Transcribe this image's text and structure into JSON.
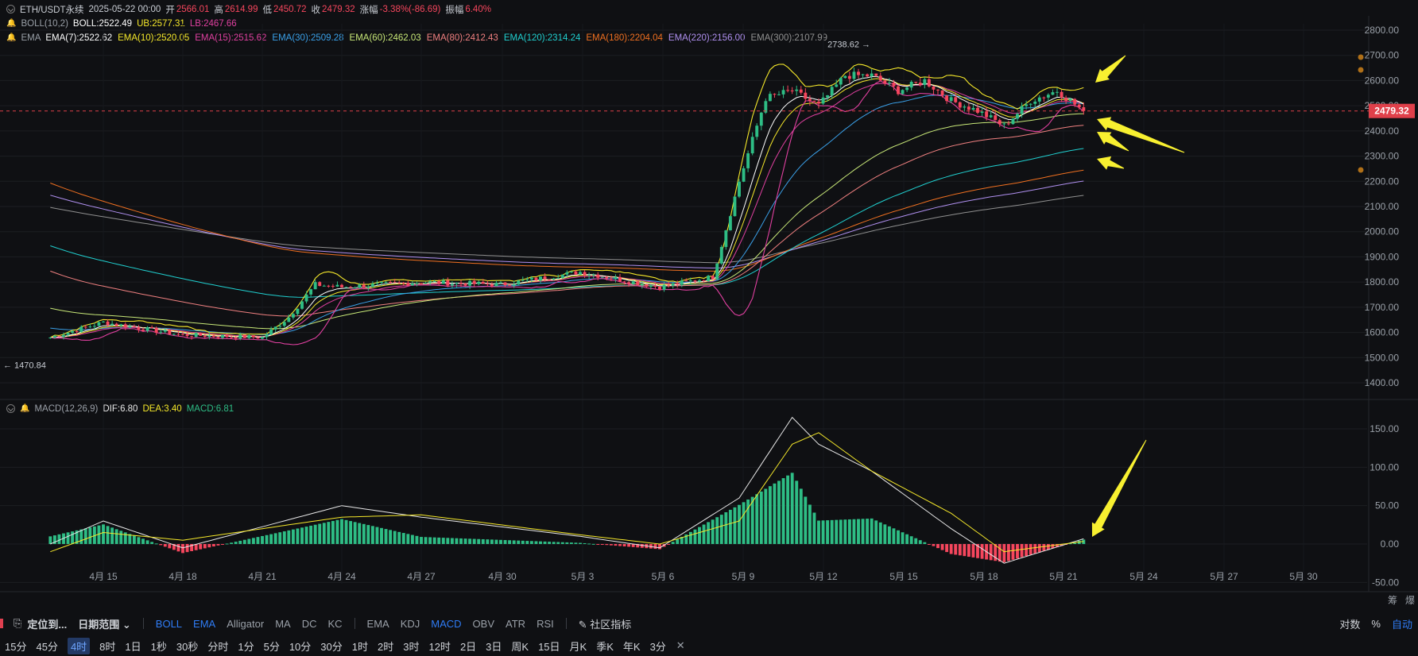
{
  "colors": {
    "up": "#2ebd85",
    "down": "#f6465d",
    "boll_mid": "#ffffff",
    "boll_up": "#f5e82a",
    "boll_low": "#e040a0",
    "ema7": "#ffffff",
    "ema10": "#f5e82a",
    "ema15": "#e040a0",
    "ema30": "#3aa0e8",
    "ema60": "#c8e878",
    "ema80": "#f08080",
    "ema120": "#20d0d0",
    "ema180": "#f07020",
    "ema220": "#b090f0",
    "ema300": "#909090",
    "dif": "#e8e8e8",
    "dea": "#f5e82a",
    "macd_pos": "#2ebd85",
    "macd_neg": "#f6465d",
    "arrow": "#f8f030",
    "price_tag": "#e0404a"
  },
  "header": {
    "symbol": "ETH/USDT永续",
    "datetime": "2025-05-22 00:00",
    "open_label": "开",
    "open": "2566.01",
    "high_label": "高",
    "high": "2614.99",
    "low_label": "低",
    "low": "2450.72",
    "close_label": "收",
    "close": "2479.32",
    "change_label": "涨幅",
    "change": "-3.38%(-86.69)",
    "amplitude_label": "振幅",
    "amplitude": "6.40%"
  },
  "boll": {
    "name": "BOLL(10,2)",
    "mid": "BOLL:2522.49",
    "ub": "UB:2577.31",
    "lb": "LB:2467.66"
  },
  "ema": {
    "name": "EMA",
    "items": [
      {
        "label": "EMA(7):2522.62",
        "key": "ema7"
      },
      {
        "label": "EMA(10):2520.05",
        "key": "ema10"
      },
      {
        "label": "EMA(15):2515.62",
        "key": "ema15"
      },
      {
        "label": "EMA(30):2509.28",
        "key": "ema30"
      },
      {
        "label": "EMA(60):2462.03",
        "key": "ema60"
      },
      {
        "label": "EMA(80):2412.43",
        "key": "ema80"
      },
      {
        "label": "EMA(120):2314.24",
        "key": "ema120"
      },
      {
        "label": "EMA(180):2204.04",
        "key": "ema180"
      },
      {
        "label": "EMA(220):2156.00",
        "key": "ema220"
      },
      {
        "label": "EMA(300):2107.99",
        "key": "ema300"
      }
    ]
  },
  "macd_header": {
    "name": "MACD(12,26,9)",
    "dif": "DIF:6.80",
    "dea": "DEA:3.40",
    "macd": "MACD:6.81"
  },
  "chart_data": [
    {
      "type": "candlestick",
      "title": "ETH/USDT永续 4时",
      "x_ticks": [
        "4月 15",
        "4月 18",
        "4月 21",
        "4月 24",
        "4月 27",
        "4月 30",
        "5月 3",
        "5月 6",
        "5月 9",
        "5月 12",
        "5月 15",
        "5月 18",
        "5月 21",
        "5月 24",
        "5月 27",
        "5月 30"
      ],
      "y_ticks": [
        "1400.00",
        "1500.00",
        "1600.00",
        "1700.00",
        "1800.00",
        "1900.00",
        "2000.00",
        "2100.00",
        "2200.00",
        "2300.00",
        "2400.00",
        "2500.00",
        "2600.00",
        "2700.00",
        "2800.00"
      ],
      "ylim": [
        1400,
        2800
      ],
      "last_price": "2479.32",
      "max_annotation": "2738.62",
      "min_annotation": "1470.84",
      "key_points": [
        {
          "date": "4月 13",
          "close": 1580
        },
        {
          "date": "4月 15",
          "close": 1640
        },
        {
          "date": "4月 18",
          "close": 1590
        },
        {
          "date": "4月 21",
          "close": 1580
        },
        {
          "date": "4月 22",
          "close": 1660
        },
        {
          "date": "4月 23",
          "close": 1790
        },
        {
          "date": "4月 24",
          "close": 1780
        },
        {
          "date": "4月 27",
          "close": 1800
        },
        {
          "date": "4月 30",
          "close": 1790
        },
        {
          "date": "5月 3",
          "close": 1840
        },
        {
          "date": "5月 6",
          "close": 1780
        },
        {
          "date": "5月 8",
          "close": 1820
        },
        {
          "date": "5月 9",
          "close": 2200
        },
        {
          "date": "5月 10",
          "close": 2530
        },
        {
          "date": "5月 11",
          "close": 2560
        },
        {
          "date": "5月 12",
          "close": 2500
        },
        {
          "date": "5月 13",
          "close": 2620
        },
        {
          "date": "5月 14",
          "close": 2620
        },
        {
          "date": "5月 15",
          "close": 2560
        },
        {
          "date": "5月 16",
          "close": 2600
        },
        {
          "date": "5月 17",
          "close": 2520
        },
        {
          "date": "5月 18",
          "close": 2480
        },
        {
          "date": "5月 19",
          "close": 2420
        },
        {
          "date": "5月 20",
          "close": 2520
        },
        {
          "date": "5月 21",
          "close": 2560
        },
        {
          "date": "5月 22",
          "close": 2479
        }
      ]
    },
    {
      "type": "bar",
      "title": "MACD(12,26,9)",
      "y_ticks": [
        "-50.00",
        "0.00",
        "50.00",
        "100.00",
        "150.00"
      ],
      "ylim": [
        -60,
        170
      ],
      "key_points": [
        {
          "date": "4月 13",
          "dif": 0,
          "dea": -10
        },
        {
          "date": "4月 15",
          "dif": 30,
          "dea": 15
        },
        {
          "date": "4月 18",
          "dif": -5,
          "dea": 5
        },
        {
          "date": "4月 24",
          "dif": 50,
          "dea": 35
        },
        {
          "date": "4月 27",
          "dif": 35,
          "dea": 38
        },
        {
          "date": "5月 3",
          "dif": 10,
          "dea": 12
        },
        {
          "date": "5月 6",
          "dif": -5,
          "dea": 0
        },
        {
          "date": "5月 9",
          "dif": 60,
          "dea": 30
        },
        {
          "date": "5月 11",
          "dif": 165,
          "dea": 130
        },
        {
          "date": "5月 12",
          "dif": 130,
          "dea": 145
        },
        {
          "date": "5月 14",
          "dif": 95,
          "dea": 95
        },
        {
          "date": "5月 17",
          "dif": 20,
          "dea": 40
        },
        {
          "date": "5月 19",
          "dif": -25,
          "dea": -10
        },
        {
          "date": "5月 22",
          "dif": 6.8,
          "dea": 3.4
        }
      ]
    }
  ],
  "toolbar1": {
    "left": [
      "定位到...",
      "日期范围"
    ],
    "overlays": [
      "BOLL",
      "EMA",
      "Alligator",
      "MA",
      "DC",
      "KC"
    ],
    "indicators": [
      "EMA",
      "KDJ",
      "MACD",
      "OBV",
      "ATR",
      "RSI"
    ],
    "community": "社区指标",
    "right": [
      "对数",
      "%",
      "自动"
    ]
  },
  "toolbar2": {
    "timeframes": [
      "15分",
      "45分",
      "4时",
      "8时",
      "1日",
      "1秒",
      "30秒",
      "分时",
      "1分",
      "5分",
      "10分",
      "30分",
      "1时",
      "2时",
      "3时",
      "12时",
      "2日",
      "3日",
      "周K",
      "15日",
      "月K",
      "季K",
      "年K",
      "3分"
    ],
    "active": "4时",
    "close_glyph": "✕"
  },
  "axis_corner": [
    "筹",
    "爆"
  ]
}
